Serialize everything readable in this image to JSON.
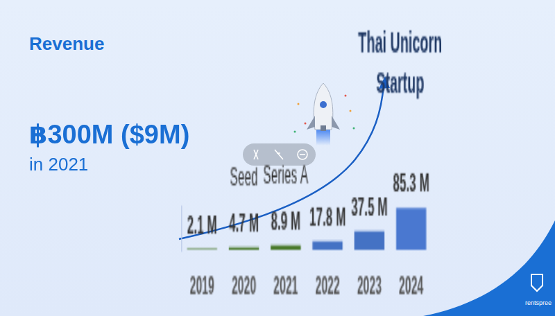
{
  "chart_data": {
    "type": "bar",
    "title": "Revenue",
    "categories": [
      "2019",
      "2020",
      "2021",
      "2022",
      "2023",
      "2024"
    ],
    "values": [
      2.1,
      4.7,
      8.9,
      17.8,
      37.5,
      85.3
    ],
    "value_labels": [
      "2.1 M",
      "4.7 M",
      "8.9 M",
      "17.8 M",
      "37.5 M",
      "85.3 M"
    ],
    "colors": [
      "#4a7a2c",
      "#4a7a2c",
      "#4a7a2c",
      "#4472c4",
      "#4472c4",
      "#4a78d0"
    ],
    "ylim": [
      0,
      90
    ],
    "grid": false,
    "data_labels": true,
    "tick_labels": "x",
    "annotations": [
      {
        "text": "Seed",
        "category": "2020"
      },
      {
        "text": "Series A",
        "category": "2021"
      }
    ],
    "milestone": {
      "text": "Thai Unicorn Startup",
      "category": "2024"
    },
    "highlight": {
      "value": "฿300M ($9M)",
      "text": "in 2021"
    }
  },
  "logo": "rentspree"
}
